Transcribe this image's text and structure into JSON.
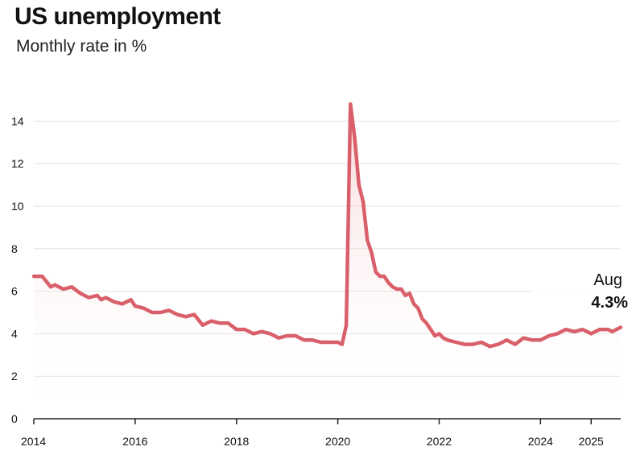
{
  "header": {
    "title": "US unemployment",
    "subtitle": "Monthly rate in %"
  },
  "colors": {
    "line": "#d9606a",
    "fill_top": "#f2b6bb",
    "grid": "#e3e3e3",
    "axis": "#222222"
  },
  "annotation": {
    "month": "Aug",
    "value": "4.3%"
  },
  "chart_data": {
    "type": "area",
    "title": "US unemployment",
    "subtitle": "Monthly rate in %",
    "xlabel": "",
    "ylabel": "",
    "ylim": [
      0,
      15
    ],
    "yticks": [
      0,
      2,
      4,
      6,
      8,
      10,
      12,
      14
    ],
    "xlim": [
      "2014-01",
      "2025-08"
    ],
    "xticks": [
      {
        "date": "2014-01",
        "label": "2014"
      },
      {
        "date": "2016-01",
        "label": "2016"
      },
      {
        "date": "2018-01",
        "label": "2018"
      },
      {
        "date": "2020-01",
        "label": "2020"
      },
      {
        "date": "2022-01",
        "label": "2022"
      },
      {
        "date": "2024-01",
        "label": "2024"
      },
      {
        "date": "2025-01",
        "label": "2025"
      }
    ],
    "grid": true,
    "legend": "none",
    "series": [
      {
        "points": [
          [
            "2014-01",
            6.7
          ],
          [
            "2014-03",
            6.7
          ],
          [
            "2014-05",
            6.2
          ],
          [
            "2014-06",
            6.3
          ],
          [
            "2014-08",
            6.1
          ],
          [
            "2014-10",
            6.2
          ],
          [
            "2014-12",
            5.9
          ],
          [
            "2015-02",
            5.7
          ],
          [
            "2015-04",
            5.8
          ],
          [
            "2015-05",
            5.6
          ],
          [
            "2015-06",
            5.7
          ],
          [
            "2015-08",
            5.5
          ],
          [
            "2015-10",
            5.4
          ],
          [
            "2015-12",
            5.6
          ],
          [
            "2016-01",
            5.3
          ],
          [
            "2016-03",
            5.2
          ],
          [
            "2016-05",
            5.0
          ],
          [
            "2016-07",
            5.0
          ],
          [
            "2016-09",
            5.1
          ],
          [
            "2016-11",
            4.9
          ],
          [
            "2017-01",
            4.8
          ],
          [
            "2017-03",
            4.9
          ],
          [
            "2017-05",
            4.4
          ],
          [
            "2017-07",
            4.6
          ],
          [
            "2017-09",
            4.5
          ],
          [
            "2017-11",
            4.5
          ],
          [
            "2018-01",
            4.2
          ],
          [
            "2018-03",
            4.2
          ],
          [
            "2018-05",
            4.0
          ],
          [
            "2018-07",
            4.1
          ],
          [
            "2018-09",
            4.0
          ],
          [
            "2018-11",
            3.8
          ],
          [
            "2019-01",
            3.9
          ],
          [
            "2019-03",
            3.9
          ],
          [
            "2019-05",
            3.7
          ],
          [
            "2019-07",
            3.7
          ],
          [
            "2019-09",
            3.6
          ],
          [
            "2019-11",
            3.6
          ],
          [
            "2020-01",
            3.6
          ],
          [
            "2020-02",
            3.5
          ],
          [
            "2020-03",
            4.4
          ],
          [
            "2020-04",
            14.8
          ],
          [
            "2020-05",
            13.2
          ],
          [
            "2020-06",
            11.0
          ],
          [
            "2020-07",
            10.2
          ],
          [
            "2020-08",
            8.4
          ],
          [
            "2020-09",
            7.8
          ],
          [
            "2020-10",
            6.9
          ],
          [
            "2020-11",
            6.7
          ],
          [
            "2020-12",
            6.7
          ],
          [
            "2021-01",
            6.4
          ],
          [
            "2021-02",
            6.2
          ],
          [
            "2021-03",
            6.1
          ],
          [
            "2021-04",
            6.1
          ],
          [
            "2021-05",
            5.8
          ],
          [
            "2021-06",
            5.9
          ],
          [
            "2021-07",
            5.4
          ],
          [
            "2021-08",
            5.2
          ],
          [
            "2021-09",
            4.7
          ],
          [
            "2021-10",
            4.5
          ],
          [
            "2021-11",
            4.2
          ],
          [
            "2021-12",
            3.9
          ],
          [
            "2022-01",
            4.0
          ],
          [
            "2022-02",
            3.8
          ],
          [
            "2022-03",
            3.7
          ],
          [
            "2022-05",
            3.6
          ],
          [
            "2022-07",
            3.5
          ],
          [
            "2022-09",
            3.5
          ],
          [
            "2022-11",
            3.6
          ],
          [
            "2023-01",
            3.4
          ],
          [
            "2023-03",
            3.5
          ],
          [
            "2023-05",
            3.7
          ],
          [
            "2023-07",
            3.5
          ],
          [
            "2023-09",
            3.8
          ],
          [
            "2023-11",
            3.7
          ],
          [
            "2024-01",
            3.7
          ],
          [
            "2024-03",
            3.9
          ],
          [
            "2024-05",
            4.0
          ],
          [
            "2024-07",
            4.2
          ],
          [
            "2024-09",
            4.1
          ],
          [
            "2024-11",
            4.2
          ],
          [
            "2025-01",
            4.0
          ],
          [
            "2025-03",
            4.2
          ],
          [
            "2025-05",
            4.2
          ],
          [
            "2025-06",
            4.1
          ],
          [
            "2025-07",
            4.2
          ],
          [
            "2025-08",
            4.3
          ]
        ]
      }
    ]
  }
}
